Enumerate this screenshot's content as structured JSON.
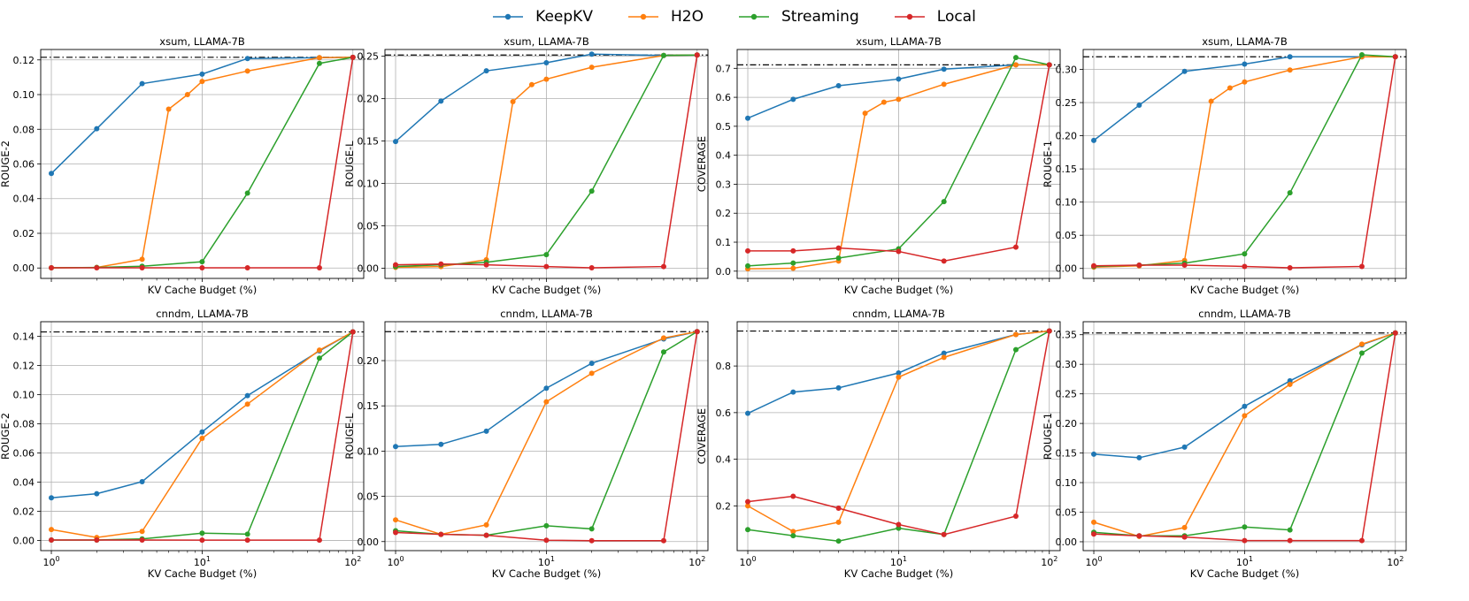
{
  "legend": [
    {
      "name": "KeepKV",
      "color": "#1f77b4"
    },
    {
      "name": "H2O",
      "color": "#ff7f0e"
    },
    {
      "name": "Streaming",
      "color": "#2ca02c"
    },
    {
      "name": "Local",
      "color": "#d62728"
    }
  ],
  "chart_data": [
    {
      "type": "line",
      "title": "xsum, LLAMA-7B",
      "xlabel": "KV Cache Budget (%)",
      "ylabel": "ROUGE-2",
      "xscale": "log",
      "xlim": [
        0.85,
        118
      ],
      "xticks": [],
      "ylim": [
        -0.006,
        0.126
      ],
      "yticks": [
        0.0,
        0.02,
        0.04,
        0.06,
        0.08,
        0.1,
        0.12
      ],
      "ytick_labels": [
        "0.00",
        "0.02",
        "0.04",
        "0.06",
        "0.08",
        "0.10",
        "0.12"
      ],
      "reference_line": 0.1215,
      "grid": true,
      "series": [
        {
          "name": "KeepKV",
          "x": [
            1,
            2,
            4,
            10,
            20,
            60,
            100
          ],
          "y": [
            0.0545,
            0.0803,
            0.1063,
            0.1118,
            0.1208,
            0.1213,
            0.1215
          ]
        },
        {
          "name": "H2O",
          "x": [
            1,
            2,
            4,
            6,
            8,
            10,
            20,
            60,
            100
          ],
          "y": [
            0.0001,
            0.0003,
            0.005,
            0.0916,
            0.1,
            0.1076,
            0.1136,
            0.1213,
            0.1215
          ]
        },
        {
          "name": "Streaming",
          "x": [
            1,
            2,
            4,
            10,
            20,
            60,
            100
          ],
          "y": [
            0.0001,
            0.0003,
            0.001,
            0.0036,
            0.0432,
            0.118,
            0.1215
          ]
        },
        {
          "name": "Local",
          "x": [
            1,
            2,
            4,
            10,
            20,
            60,
            100
          ],
          "y": [
            0.0001,
            0.0001,
            0.0001,
            0.0001,
            0.0001,
            0.0001,
            0.1215
          ]
        }
      ]
    },
    {
      "type": "line",
      "title": "xsum, LLAMA-7B",
      "xlabel": "KV Cache Budget (%)",
      "ylabel": "ROUGE-L",
      "xscale": "log",
      "xlim": [
        0.85,
        118
      ],
      "xticks": [],
      "ylim": [
        -0.012,
        0.258
      ],
      "yticks": [
        0.0,
        0.05,
        0.1,
        0.15,
        0.2,
        0.25
      ],
      "ytick_labels": [
        "0.00",
        "0.05",
        "0.10",
        "0.15",
        "0.20",
        "0.25"
      ],
      "reference_line": 0.2515,
      "grid": true,
      "series": [
        {
          "name": "KeepKV",
          "x": [
            1,
            2,
            4,
            10,
            20,
            60,
            100
          ],
          "y": [
            0.1495,
            0.1972,
            0.2328,
            0.2424,
            0.2525,
            0.251,
            0.2515
          ]
        },
        {
          "name": "H2O",
          "x": [
            1,
            2,
            4,
            6,
            8,
            10,
            20,
            60,
            100
          ],
          "y": [
            0.001,
            0.002,
            0.01,
            0.1965,
            0.2165,
            0.223,
            0.237,
            0.251,
            0.2515
          ]
        },
        {
          "name": "Streaming",
          "x": [
            1,
            2,
            4,
            10,
            20,
            60,
            100
          ],
          "y": [
            0.002,
            0.004,
            0.007,
            0.016,
            0.091,
            0.251,
            0.2515
          ]
        },
        {
          "name": "Local",
          "x": [
            1,
            2,
            4,
            10,
            20,
            60,
            100
          ],
          "y": [
            0.004,
            0.005,
            0.004,
            0.002,
            0.0005,
            0.002,
            0.2515
          ]
        }
      ]
    },
    {
      "type": "line",
      "title": "xsum, LLAMA-7B",
      "xlabel": "KV Cache Budget (%)",
      "ylabel": "COVERAGE",
      "xscale": "log",
      "xlim": [
        0.85,
        118
      ],
      "xticks": [],
      "ylim": [
        -0.025,
        0.765
      ],
      "yticks": [
        0.0,
        0.1,
        0.2,
        0.3,
        0.4,
        0.5,
        0.6,
        0.7
      ],
      "ytick_labels": [
        "0.0",
        "0.1",
        "0.2",
        "0.3",
        "0.4",
        "0.5",
        "0.6",
        "0.7"
      ],
      "reference_line": 0.712,
      "grid": true,
      "series": [
        {
          "name": "KeepKV",
          "x": [
            1,
            2,
            4,
            10,
            20,
            60,
            100
          ],
          "y": [
            0.528,
            0.593,
            0.64,
            0.663,
            0.697,
            0.712,
            0.712
          ]
        },
        {
          "name": "H2O",
          "x": [
            1,
            2,
            4,
            6,
            8,
            10,
            20,
            60,
            100
          ],
          "y": [
            0.008,
            0.01,
            0.035,
            0.545,
            0.583,
            0.593,
            0.645,
            0.712,
            0.712
          ]
        },
        {
          "name": "Streaming",
          "x": [
            1,
            2,
            4,
            10,
            20,
            60,
            100
          ],
          "y": [
            0.018,
            0.028,
            0.045,
            0.077,
            0.24,
            0.737,
            0.712
          ]
        },
        {
          "name": "Local",
          "x": [
            1,
            2,
            4,
            10,
            20,
            60,
            100
          ],
          "y": [
            0.07,
            0.07,
            0.08,
            0.068,
            0.035,
            0.083,
            0.712
          ]
        }
      ]
    },
    {
      "type": "line",
      "title": "xsum, LLAMA-7B",
      "xlabel": "KV Cache Budget (%)",
      "ylabel": "ROUGE-1",
      "xscale": "log",
      "xlim": [
        0.85,
        118
      ],
      "xticks": [],
      "ylim": [
        -0.015,
        0.33
      ],
      "yticks": [
        0.0,
        0.05,
        0.1,
        0.15,
        0.2,
        0.25,
        0.3
      ],
      "ytick_labels": [
        "0.00",
        "0.05",
        "0.10",
        "0.15",
        "0.20",
        "0.25",
        "0.30"
      ],
      "reference_line": 0.319,
      "grid": true,
      "series": [
        {
          "name": "KeepKV",
          "x": [
            1,
            2,
            4,
            10,
            20,
            60,
            100
          ],
          "y": [
            0.193,
            0.246,
            0.297,
            0.308,
            0.319,
            0.319,
            0.319
          ]
        },
        {
          "name": "H2O",
          "x": [
            1,
            2,
            4,
            6,
            8,
            10,
            20,
            60,
            100
          ],
          "y": [
            0.002,
            0.004,
            0.012,
            0.252,
            0.272,
            0.281,
            0.299,
            0.319,
            0.319
          ]
        },
        {
          "name": "Streaming",
          "x": [
            1,
            2,
            4,
            10,
            20,
            60,
            100
          ],
          "y": [
            0.003,
            0.005,
            0.008,
            0.022,
            0.114,
            0.322,
            0.319
          ]
        },
        {
          "name": "Local",
          "x": [
            1,
            2,
            4,
            10,
            20,
            60,
            100
          ],
          "y": [
            0.004,
            0.005,
            0.005,
            0.003,
            0.001,
            0.003,
            0.319
          ]
        }
      ]
    },
    {
      "type": "line",
      "title": "cnndm, LLAMA-7B",
      "xlabel": "KV Cache Budget (%)",
      "ylabel": "ROUGE-2",
      "xscale": "log",
      "xlim": [
        0.85,
        118
      ],
      "xticks": [
        1,
        10,
        100
      ],
      "ylim": [
        -0.007,
        0.15
      ],
      "yticks": [
        0.0,
        0.02,
        0.04,
        0.06,
        0.08,
        0.1,
        0.12,
        0.14
      ],
      "ytick_labels": [
        "0.00",
        "0.02",
        "0.04",
        "0.06",
        "0.08",
        "0.10",
        "0.12",
        "0.14"
      ],
      "reference_line": 0.143,
      "grid": true,
      "series": [
        {
          "name": "KeepKV",
          "x": [
            1,
            2,
            4,
            10,
            20,
            60,
            100
          ],
          "y": [
            0.0292,
            0.032,
            0.0403,
            0.0744,
            0.0993,
            0.13,
            0.143
          ]
        },
        {
          "name": "H2O",
          "x": [
            1,
            2,
            4,
            10,
            20,
            60,
            100
          ],
          "y": [
            0.0075,
            0.002,
            0.0062,
            0.07,
            0.0935,
            0.1305,
            0.143
          ]
        },
        {
          "name": "Streaming",
          "x": [
            1,
            2,
            4,
            10,
            20,
            60,
            100
          ],
          "y": [
            0.0003,
            0.0003,
            0.001,
            0.005,
            0.0043,
            0.125,
            0.143
          ]
        },
        {
          "name": "Local",
          "x": [
            1,
            2,
            4,
            10,
            20,
            60,
            100
          ],
          "y": [
            0.0003,
            0.0003,
            0.0003,
            0.0002,
            0.0002,
            0.0002,
            0.143
          ]
        }
      ]
    },
    {
      "type": "line",
      "title": "cnndm, LLAMA-7B",
      "xlabel": "KV Cache Budget (%)",
      "ylabel": "ROUGE-L",
      "xscale": "log",
      "xlim": [
        0.85,
        118
      ],
      "xticks": [
        1,
        10,
        100
      ],
      "ylim": [
        -0.01,
        0.243
      ],
      "yticks": [
        0.0,
        0.05,
        0.1,
        0.15,
        0.2
      ],
      "ytick_labels": [
        "0.00",
        "0.05",
        "0.10",
        "0.15",
        "0.20"
      ],
      "reference_line": 0.232,
      "grid": true,
      "series": [
        {
          "name": "KeepKV",
          "x": [
            1,
            2,
            4,
            10,
            20,
            60,
            100
          ],
          "y": [
            0.105,
            0.1075,
            0.122,
            0.1695,
            0.197,
            0.224,
            0.232
          ]
        },
        {
          "name": "H2O",
          "x": [
            1,
            2,
            4,
            10,
            20,
            60,
            100
          ],
          "y": [
            0.024,
            0.008,
            0.0185,
            0.1545,
            0.186,
            0.225,
            0.232
          ]
        },
        {
          "name": "Streaming",
          "x": [
            1,
            2,
            4,
            10,
            20,
            60,
            100
          ],
          "y": [
            0.012,
            0.008,
            0.007,
            0.0175,
            0.014,
            0.2095,
            0.232
          ]
        },
        {
          "name": "Local",
          "x": [
            1,
            2,
            4,
            10,
            20,
            60,
            100
          ],
          "y": [
            0.01,
            0.008,
            0.007,
            0.0015,
            0.001,
            0.001,
            0.232
          ]
        }
      ]
    },
    {
      "type": "line",
      "title": "cnndm, LLAMA-7B",
      "xlabel": "KV Cache Budget (%)",
      "ylabel": "COVERAGE",
      "xscale": "log",
      "xlim": [
        0.85,
        118
      ],
      "xticks": [
        1,
        10,
        100
      ],
      "ylim": [
        0.008,
        0.99
      ],
      "yticks": [
        0.2,
        0.4,
        0.6,
        0.8
      ],
      "ytick_labels": [
        "0.2",
        "0.4",
        "0.6",
        "0.8"
      ],
      "reference_line": 0.95,
      "grid": true,
      "series": [
        {
          "name": "KeepKV",
          "x": [
            1,
            2,
            4,
            10,
            20,
            60,
            100
          ],
          "y": [
            0.597,
            0.688,
            0.706,
            0.77,
            0.855,
            0.935,
            0.95
          ]
        },
        {
          "name": "H2O",
          "x": [
            1,
            2,
            4,
            10,
            20,
            60,
            100
          ],
          "y": [
            0.2,
            0.09,
            0.13,
            0.752,
            0.837,
            0.935,
            0.95
          ]
        },
        {
          "name": "Streaming",
          "x": [
            1,
            2,
            4,
            10,
            20,
            60,
            100
          ],
          "y": [
            0.098,
            0.072,
            0.049,
            0.104,
            0.077,
            0.87,
            0.95
          ]
        },
        {
          "name": "Local",
          "x": [
            1,
            2,
            4,
            10,
            20,
            60,
            100
          ],
          "y": [
            0.218,
            0.241,
            0.19,
            0.12,
            0.077,
            0.156,
            0.95
          ]
        }
      ]
    },
    {
      "type": "line",
      "title": "cnndm, LLAMA-7B",
      "xlabel": "KV Cache Budget (%)",
      "ylabel": "ROUGE-1",
      "xscale": "log",
      "xlim": [
        0.85,
        118
      ],
      "xticks": [
        1,
        10,
        100
      ],
      "ylim": [
        -0.015,
        0.372
      ],
      "yticks": [
        0.0,
        0.05,
        0.1,
        0.15,
        0.2,
        0.25,
        0.3,
        0.35
      ],
      "ytick_labels": [
        "0.00",
        "0.05",
        "0.10",
        "0.15",
        "0.20",
        "0.25",
        "0.30",
        "0.35"
      ],
      "reference_line": 0.353,
      "grid": true,
      "series": [
        {
          "name": "KeepKV",
          "x": [
            1,
            2,
            4,
            10,
            20,
            60,
            100
          ],
          "y": [
            0.148,
            0.142,
            0.16,
            0.229,
            0.272,
            0.333,
            0.353
          ]
        },
        {
          "name": "H2O",
          "x": [
            1,
            2,
            4,
            10,
            20,
            60,
            100
          ],
          "y": [
            0.033,
            0.009,
            0.024,
            0.213,
            0.266,
            0.334,
            0.353
          ]
        },
        {
          "name": "Streaming",
          "x": [
            1,
            2,
            4,
            10,
            20,
            60,
            100
          ],
          "y": [
            0.016,
            0.01,
            0.01,
            0.025,
            0.02,
            0.319,
            0.353
          ]
        },
        {
          "name": "Local",
          "x": [
            1,
            2,
            4,
            10,
            20,
            60,
            100
          ],
          "y": [
            0.013,
            0.01,
            0.008,
            0.002,
            0.002,
            0.002,
            0.353
          ]
        }
      ]
    }
  ]
}
